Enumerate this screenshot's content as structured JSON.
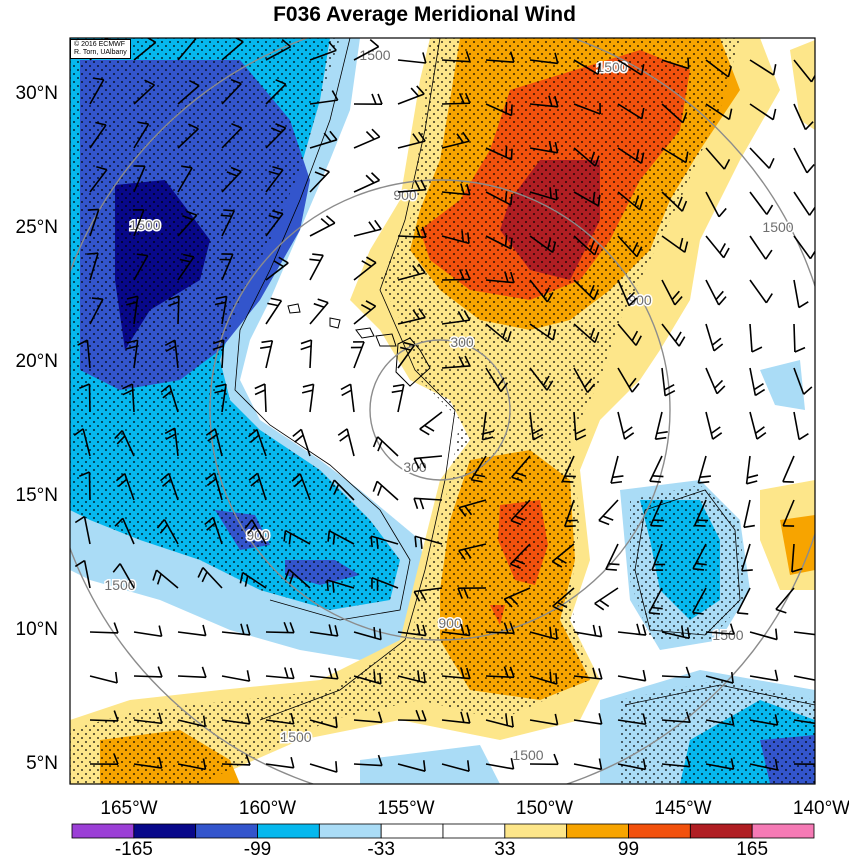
{
  "title": "F036 Average Meridional Wind",
  "credit": {
    "line1": "© 2016 ECMWF",
    "line2": "R. Torn, UAlbany"
  },
  "lat_labels": [
    "30°N",
    "25°N",
    "20°N",
    "15°N",
    "10°N",
    "5°N"
  ],
  "lat_values": [
    30,
    25,
    20,
    15,
    10,
    5
  ],
  "lon_labels": [
    "165°W",
    "160°W",
    "155°W",
    "150°W",
    "145°W",
    "140°W"
  ],
  "lon_values": [
    -165,
    -160,
    -155,
    -150,
    -145,
    -140
  ],
  "colorbar": {
    "labels": [
      "-165",
      "-99",
      "-33",
      "33",
      "99",
      "165"
    ],
    "colors": [
      "#9b3fd6",
      "#08088a",
      "#3355cc",
      "#06b8ee",
      "#aadcf6",
      "#ffffff",
      "#ffffff",
      "#fde68a",
      "#f7a400",
      "#f2510d",
      "#b01e23",
      "#f57ab5"
    ]
  },
  "range_ring_labels": [
    "300",
    "900",
    "1500"
  ],
  "colors": {
    "strong_negative": "#08088a",
    "negative": "#3355cc",
    "mid_negative": "#06b8ee",
    "weak_negative": "#aadcf6",
    "weak_positive": "#fde68a",
    "mid_positive": "#f7a400",
    "positive": "#f2510d",
    "strong_positive": "#b01e23",
    "rings": "#8c8c8c"
  }
}
